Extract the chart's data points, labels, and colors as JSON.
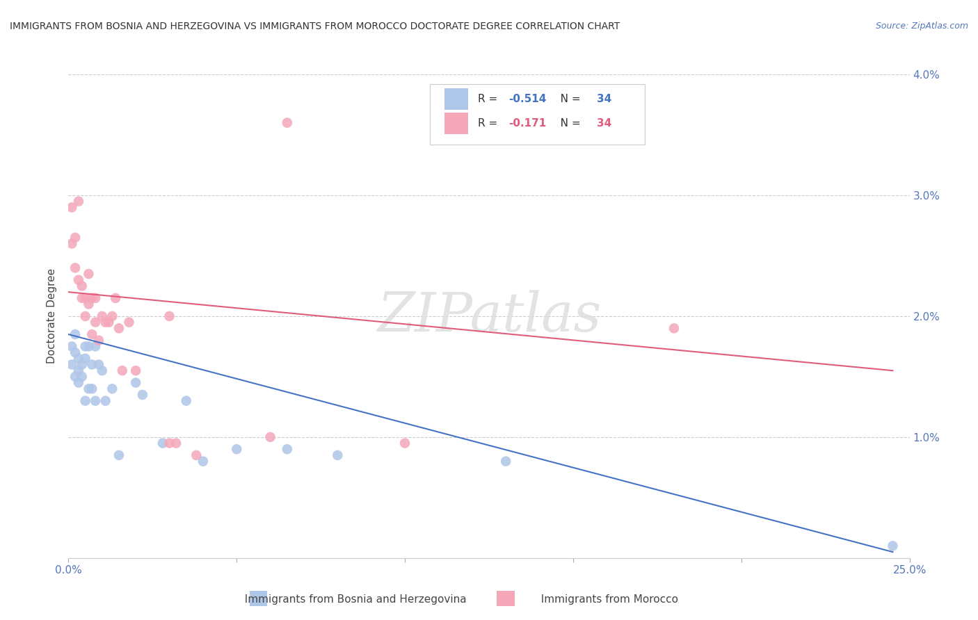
{
  "title": "IMMIGRANTS FROM BOSNIA AND HERZEGOVINA VS IMMIGRANTS FROM MOROCCO DOCTORATE DEGREE CORRELATION CHART",
  "source": "Source: ZipAtlas.com",
  "xlabel_bosnia": "Immigrants from Bosnia and Herzegovina",
  "xlabel_morocco": "Immigrants from Morocco",
  "ylabel": "Doctorate Degree",
  "xlim": [
    0,
    0.25
  ],
  "ylim": [
    0,
    0.04
  ],
  "r_bosnia": -0.514,
  "r_morocco": -0.171,
  "n_bosnia": 34,
  "n_morocco": 34,
  "color_bosnia": "#aec6e8",
  "color_morocco": "#f4a7b9",
  "color_line_bosnia": "#4472c4",
  "color_line_morocco": "#e05c7a",
  "watermark": "ZIPatlas",
  "bosnia_x": [
    0.001,
    0.001,
    0.002,
    0.002,
    0.002,
    0.003,
    0.003,
    0.003,
    0.004,
    0.004,
    0.005,
    0.005,
    0.005,
    0.006,
    0.006,
    0.007,
    0.007,
    0.008,
    0.008,
    0.009,
    0.01,
    0.011,
    0.013,
    0.015,
    0.02,
    0.022,
    0.028,
    0.035,
    0.04,
    0.05,
    0.065,
    0.08,
    0.13,
    0.245
  ],
  "bosnia_y": [
    0.0175,
    0.016,
    0.0185,
    0.017,
    0.015,
    0.0165,
    0.0155,
    0.0145,
    0.016,
    0.015,
    0.0175,
    0.0165,
    0.013,
    0.0175,
    0.014,
    0.016,
    0.014,
    0.0175,
    0.013,
    0.016,
    0.0155,
    0.013,
    0.014,
    0.0085,
    0.0145,
    0.0135,
    0.0095,
    0.013,
    0.008,
    0.009,
    0.009,
    0.0085,
    0.008,
    0.001
  ],
  "morocco_x": [
    0.001,
    0.001,
    0.002,
    0.002,
    0.003,
    0.003,
    0.004,
    0.004,
    0.005,
    0.005,
    0.006,
    0.006,
    0.007,
    0.007,
    0.008,
    0.008,
    0.009,
    0.01,
    0.011,
    0.012,
    0.013,
    0.014,
    0.015,
    0.016,
    0.018,
    0.02,
    0.03,
    0.032,
    0.038,
    0.06,
    0.065,
    0.1,
    0.18,
    0.03
  ],
  "morocco_y": [
    0.029,
    0.026,
    0.0265,
    0.024,
    0.0295,
    0.023,
    0.0225,
    0.0215,
    0.0215,
    0.02,
    0.0235,
    0.021,
    0.0215,
    0.0185,
    0.0215,
    0.0195,
    0.018,
    0.02,
    0.0195,
    0.0195,
    0.02,
    0.0215,
    0.019,
    0.0155,
    0.0195,
    0.0155,
    0.0095,
    0.0095,
    0.0085,
    0.01,
    0.036,
    0.0095,
    0.019,
    0.02
  ],
  "line_bosnia_x0": 0.0,
  "line_bosnia_y0": 0.0185,
  "line_bosnia_x1": 0.245,
  "line_bosnia_y1": 0.0005,
  "line_morocco_x0": 0.0,
  "line_morocco_y0": 0.022,
  "line_morocco_x1": 0.245,
  "line_morocco_y1": 0.0155
}
